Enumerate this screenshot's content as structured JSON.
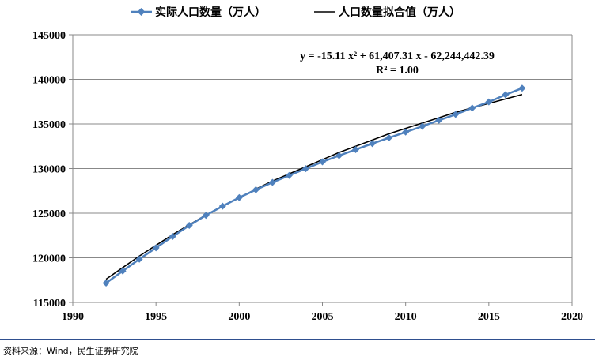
{
  "chart_data": {
    "type": "line",
    "xlim": [
      1990,
      2020
    ],
    "ylim": [
      115000,
      145000
    ],
    "xticks": [
      1990,
      1995,
      2000,
      2005,
      2010,
      2015,
      2020
    ],
    "yticks": [
      115000,
      120000,
      125000,
      130000,
      135000,
      140000,
      145000
    ],
    "series": [
      {
        "name": "实际人口数量（万人）",
        "color": "#4f81bd",
        "marker": "diamond",
        "x": [
          1992,
          1993,
          1994,
          1995,
          1996,
          1997,
          1998,
          1999,
          2000,
          2001,
          2002,
          2003,
          2004,
          2005,
          2006,
          2007,
          2008,
          2009,
          2010,
          2011,
          2012,
          2013,
          2014,
          2015,
          2016,
          2017
        ],
        "y": [
          117171,
          118517,
          119850,
          121121,
          122389,
          123626,
          124761,
          125786,
          126743,
          127627,
          128453,
          129227,
          129988,
          130756,
          131448,
          132129,
          132802,
          133450,
          134091,
          134735,
          135404,
          136072,
          136782,
          137462,
          138271,
          139008
        ]
      },
      {
        "name": "人口数量拟合值（万人）",
        "color": "#000000",
        "marker": "none",
        "x": [
          1992,
          1993,
          1994,
          1995,
          1996,
          1997,
          1998,
          1999,
          2000,
          2001,
          2002,
          2003,
          2004,
          2005,
          2006,
          2007,
          2008,
          2009,
          2010,
          2011,
          2012,
          2013,
          2014,
          2015,
          2016,
          2017
        ],
        "y": [
          117600,
          118900,
          120200,
          121400,
          122600,
          123700,
          124800,
          125800,
          126700,
          127700,
          128600,
          129400,
          130200,
          131000,
          131800,
          132500,
          133200,
          133900,
          134500,
          135100,
          135700,
          136300,
          136800,
          137300,
          137800,
          138300
        ]
      }
    ],
    "equation": "y = -15.11 x² + 61,407.31 x - 62,244,442.39",
    "r_squared": "R² = 1.00",
    "legend_position": "top"
  },
  "source_note": "资料来源：Wind，民生证券研究院"
}
